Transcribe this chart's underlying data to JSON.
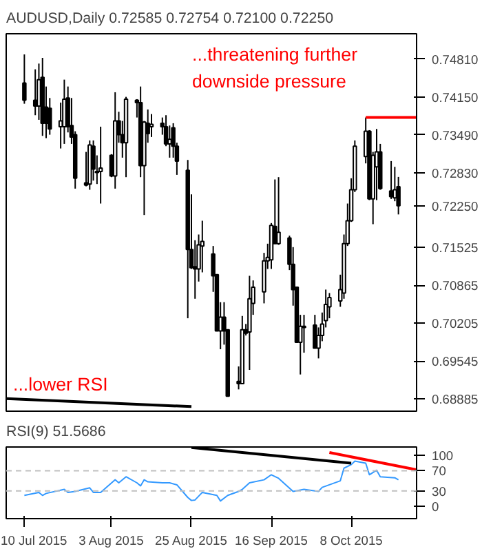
{
  "chart_data": [
    {
      "type": "candlestick",
      "title": "AUDUSD,Daily  0.72585 0.72754 0.72100 0.72250",
      "tick_labels": "y",
      "x": [
        "2015-07-10",
        "2015-07-13",
        "2015-07-14",
        "2015-07-15",
        "2015-07-16",
        "2015-07-17",
        "2015-07-20",
        "2015-07-21",
        "2015-07-22",
        "2015-07-23",
        "2015-07-24",
        "2015-07-27",
        "2015-07-28",
        "2015-07-29",
        "2015-07-30",
        "2015-07-31",
        "2015-08-03",
        "2015-08-04",
        "2015-08-05",
        "2015-08-06",
        "2015-08-07",
        "2015-08-10",
        "2015-08-11",
        "2015-08-12",
        "2015-08-13",
        "2015-08-14",
        "2015-08-17",
        "2015-08-18",
        "2015-08-19",
        "2015-08-20",
        "2015-08-21",
        "2015-08-24",
        "2015-08-25",
        "2015-08-26",
        "2015-08-27",
        "2015-08-28",
        "2015-08-31",
        "2015-09-01",
        "2015-09-02",
        "2015-09-03",
        "2015-09-04",
        "2015-09-07",
        "2015-09-08",
        "2015-09-09",
        "2015-09-10",
        "2015-09-11",
        "2015-09-14",
        "2015-09-15",
        "2015-09-16",
        "2015-09-17",
        "2015-09-18",
        "2015-09-21",
        "2015-09-22",
        "2015-09-23",
        "2015-09-24",
        "2015-09-25",
        "2015-09-28",
        "2015-09-29",
        "2015-09-30",
        "2015-10-01",
        "2015-10-02",
        "2015-10-05",
        "2015-10-06",
        "2015-10-07",
        "2015-10-08",
        "2015-10-09",
        "2015-10-12",
        "2015-10-13",
        "2015-10-14",
        "2015-10-15",
        "2015-10-16",
        "2015-10-19",
        "2015-10-20",
        "2015-10-21"
      ],
      "ohlc": [
        [
          0.7439,
          0.7489,
          0.7403,
          0.7409
        ],
        [
          0.7409,
          0.7463,
          0.7383,
          0.7399
        ],
        [
          0.7399,
          0.7473,
          0.7375,
          0.7445
        ],
        [
          0.7449,
          0.7483,
          0.7347,
          0.7369
        ],
        [
          0.7397,
          0.7433,
          0.7343,
          0.7369
        ],
        [
          0.7395,
          0.7413,
          0.7349,
          0.7359
        ],
        [
          0.7363,
          0.7405,
          0.7325,
          0.7373
        ],
        [
          0.7363,
          0.7445,
          0.7333,
          0.7411
        ],
        [
          0.7413,
          0.7433,
          0.7353,
          0.7363
        ],
        [
          0.7365,
          0.7413,
          0.7333,
          0.7345
        ],
        [
          0.7349,
          0.7355,
          0.7255,
          0.7273
        ],
        [
          0.7265,
          0.7319,
          0.7259,
          0.7261
        ],
        [
          0.7263,
          0.7339,
          0.7253,
          0.7331
        ],
        [
          0.7329,
          0.7339,
          0.7269,
          0.7289
        ],
        [
          0.7285,
          0.7313,
          0.7263,
          0.7283
        ],
        [
          0.7285,
          0.7363,
          0.7229,
          0.7291
        ],
        [
          0.7313,
          0.7315,
          0.7275,
          0.7277
        ],
        [
          0.7277,
          0.7423,
          0.7255,
          0.7373
        ],
        [
          0.7373,
          0.7389,
          0.7335,
          0.7349
        ],
        [
          0.7349,
          0.7373,
          0.7309,
          0.7335
        ],
        [
          0.7335,
          0.7415,
          0.7275,
          0.7411
        ],
        [
          0.7409,
          0.7411,
          0.7379,
          0.7405
        ],
        [
          0.7405,
          0.7433,
          0.7275,
          0.7295
        ],
        [
          0.7295,
          0.7373,
          0.7209,
          0.7371
        ],
        [
          0.7369,
          0.7393,
          0.7335,
          0.7351
        ],
        [
          0.7363,
          0.7385,
          0.7345,
          0.7367
        ],
        [
          0.7369,
          0.7379,
          0.7349,
          0.7363
        ],
        [
          0.7363,
          0.7383,
          0.7329,
          0.7333
        ],
        [
          0.7333,
          0.7365,
          0.7309,
          0.7341
        ],
        [
          0.7361,
          0.7369,
          0.7309,
          0.7329
        ],
        [
          0.7329,
          0.7335,
          0.7279,
          0.7303
        ],
        [
          0.7287,
          0.7305,
          0.7029,
          0.7149
        ],
        [
          0.7149,
          0.7245,
          0.7115,
          0.7117
        ],
        [
          0.7119,
          0.7165,
          0.7063,
          0.7115
        ],
        [
          0.7115,
          0.7175,
          0.7093,
          0.7157
        ],
        [
          0.7155,
          0.7199,
          0.7109,
          0.7163
        ],
        [
          0.7141,
          0.7155,
          0.7075,
          0.7103
        ],
        [
          0.7105,
          0.7105,
          0.7007,
          0.7007
        ],
        [
          0.7007,
          0.7057,
          0.6975,
          0.7031
        ],
        [
          0.7031,
          0.7057,
          0.6983,
          0.7007
        ],
        [
          0.7009,
          0.7009,
          0.6893,
          0.6893
        ],
        [
          0.6919,
          0.6945,
          0.6905,
          0.6915
        ],
        [
          0.6915,
          0.7033,
          0.6915,
          0.7009
        ],
        [
          0.7009,
          0.7019,
          0.6999,
          0.7003
        ],
        [
          0.7005,
          0.7103,
          0.6939,
          0.7063
        ],
        [
          0.7055,
          0.7095,
          0.7035,
          0.7083
        ],
        [
          0.7075,
          0.7143,
          0.7055,
          0.7129
        ],
        [
          0.7129,
          0.7159,
          0.7115,
          0.7135
        ],
        [
          0.7131,
          0.7195,
          0.7115,
          0.7191
        ],
        [
          0.7189,
          0.7271,
          0.7159,
          0.7159
        ],
        [
          0.7159,
          0.7275,
          0.7157,
          0.7179
        ],
        [
          0.7169,
          0.7173,
          0.7113,
          0.7123
        ],
        [
          0.7123,
          0.7153,
          0.7051,
          0.7079
        ],
        [
          0.7083,
          0.7083,
          0.6987,
          0.6987
        ],
        [
          0.6987,
          0.7035,
          0.6931,
          0.7015
        ],
        [
          0.7015,
          0.7035,
          0.6969,
          0.7013
        ],
        [
          0.7017,
          0.7035,
          0.6977,
          0.6977
        ],
        [
          0.6977,
          0.7013,
          0.6959,
          0.6999
        ],
        [
          0.6999,
          0.7039,
          0.6989,
          0.7019
        ],
        [
          0.7025,
          0.7079,
          0.7013,
          0.7053
        ],
        [
          0.7049,
          0.7073,
          0.7029,
          0.7065
        ],
        [
          0.7059,
          0.7105,
          0.7049,
          0.7079
        ],
        [
          0.7073,
          0.7175,
          0.7063,
          0.7159
        ],
        [
          0.7159,
          0.7229,
          0.7155,
          0.7199
        ],
        [
          0.7199,
          0.7273,
          0.7197,
          0.7253
        ],
        [
          0.7253,
          0.7339,
          0.7249,
          0.7329
        ],
        [
          0.7311,
          0.7379,
          0.7299,
          0.7355
        ],
        [
          0.7355,
          0.7357,
          0.7235,
          0.7237
        ],
        [
          0.7237,
          0.7319,
          0.7193,
          0.7313
        ],
        [
          0.7293,
          0.7359,
          0.7235,
          0.7319
        ],
        [
          0.7319,
          0.7333,
          0.7253,
          0.7255
        ],
        [
          0.7251,
          0.7303,
          0.7237,
          0.7241
        ],
        [
          0.7239,
          0.7293,
          0.7233,
          0.7253
        ],
        [
          0.72585,
          0.72754,
          0.721,
          0.7225
        ]
      ],
      "series": [
        {
          "type": "line",
          "color": "#ff0000",
          "x": [
            "2015-10-12",
            "2015-10-26"
          ],
          "values": [
            0.7379,
            0.7379
          ]
        },
        {
          "type": "line",
          "color": "#000000",
          "x": [
            "2015-07-05",
            "2015-08-25"
          ],
          "values": [
            0.6889,
            0.6875
          ]
        }
      ],
      "xlim": [
        "2015-07-05",
        "2015-10-26"
      ],
      "ylim": [
        0.6867,
        0.7525
      ],
      "yticks": [
        {
          "value": 0.7481,
          "label": "0.74810"
        },
        {
          "value": 0.7415,
          "label": "0.74150"
        },
        {
          "value": 0.7349,
          "label": "0.73490"
        },
        {
          "value": 0.7283,
          "label": "0.72830"
        },
        {
          "value": 0.7225,
          "label": "0.72250"
        },
        {
          "value": 0.71525,
          "label": "0.71525"
        },
        {
          "value": 0.70865,
          "label": "0.70865"
        },
        {
          "value": 0.70205,
          "label": "0.70205"
        },
        {
          "value": 0.69545,
          "label": "0.69545"
        },
        {
          "value": 0.68885,
          "label": "0.68885"
        }
      ],
      "annotations": [
        "...threatening further\ndownside pressure",
        "...lower RSI"
      ]
    },
    {
      "type": "line",
      "title": "RSI(9) 51.5686",
      "series": [
        {
          "color": "#3399ff",
          "x": [
            "2015-07-10",
            "2015-07-14",
            "2015-07-15",
            "2015-07-16",
            "2015-07-21",
            "2015-07-22",
            "2015-07-24",
            "2015-07-28",
            "2015-07-29",
            "2015-07-31",
            "2015-08-04",
            "2015-08-05",
            "2015-08-07",
            "2015-08-10",
            "2015-08-11",
            "2015-08-12",
            "2015-08-13",
            "2015-08-17",
            "2015-08-19",
            "2015-08-21",
            "2015-08-24",
            "2015-08-25",
            "2015-08-26",
            "2015-08-28",
            "2015-09-01",
            "2015-09-02",
            "2015-09-04",
            "2015-09-07",
            "2015-09-08",
            "2015-09-10",
            "2015-09-14",
            "2015-09-16",
            "2015-09-18",
            "2015-09-22",
            "2015-09-25",
            "2015-09-29",
            "2015-09-30",
            "2015-10-05",
            "2015-10-06",
            "2015-10-08",
            "2015-10-09",
            "2015-10-12",
            "2015-10-13",
            "2015-10-15",
            "2015-10-16",
            "2015-10-20",
            "2015-10-21"
          ],
          "values": [
            21,
            27,
            21,
            25,
            33,
            27,
            29,
            36,
            27,
            27,
            52,
            46,
            58,
            46,
            40,
            52,
            48,
            46,
            46,
            42,
            17,
            11,
            12,
            27,
            21,
            10,
            21,
            29,
            33,
            46,
            52,
            62,
            55,
            29,
            33,
            29,
            37,
            50,
            75,
            82,
            89,
            85,
            62,
            71,
            58,
            56,
            52
          ]
        },
        {
          "color": "#ff0000",
          "x": [
            "2015-10-02",
            "2015-10-26"
          ],
          "values": [
            106,
            72
          ]
        },
        {
          "color": "#000000",
          "x": [
            "2015-08-25",
            "2015-10-08"
          ],
          "values": [
            116,
            85
          ]
        }
      ],
      "xlim": [
        "2015-07-05",
        "2015-10-26"
      ],
      "ylim": [
        -25,
        117
      ],
      "yticks": [
        0,
        30,
        70,
        100
      ],
      "xticks": [
        {
          "value": "2015-07-10",
          "label": "10 Jul 2015"
        },
        {
          "value": "2015-08-03",
          "label": "3 Aug 2015"
        },
        {
          "value": "2015-08-25",
          "label": "25 Aug 2015"
        },
        {
          "value": "2015-09-16",
          "label": "16 Sep 2015"
        },
        {
          "value": "2015-10-08",
          "label": "8 Oct 2015"
        }
      ],
      "ref_lines": [
        {
          "axis": "y",
          "value": 70,
          "color": "#c0c0c0",
          "line_style": "dashed"
        },
        {
          "axis": "y",
          "value": 30,
          "color": "#c0c0c0",
          "line_style": "dashed"
        }
      ]
    }
  ]
}
